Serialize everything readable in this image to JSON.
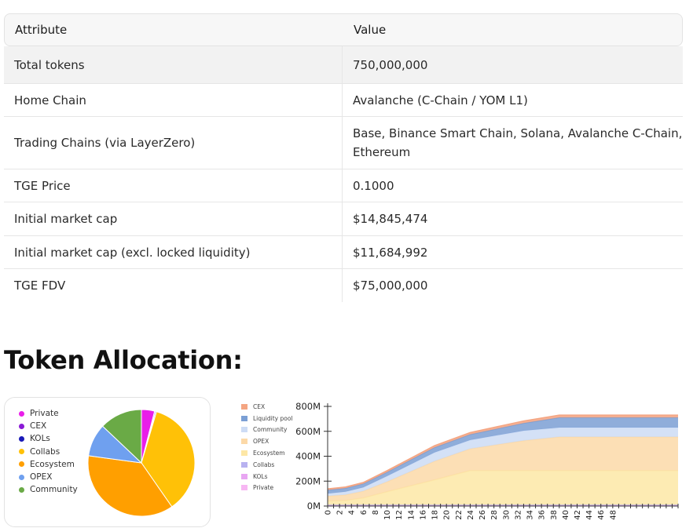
{
  "table": {
    "headers": [
      "Attribute",
      "Value"
    ],
    "rows": [
      {
        "attribute": "Total tokens",
        "value": "750,000,000"
      },
      {
        "attribute": "Home Chain",
        "value": "Avalanche (C-Chain / YOM L1)"
      },
      {
        "attribute": "Trading Chains (via LayerZero)",
        "value": "Base, Binance Smart Chain, Solana, Avalanche C-Chain, Ethereum"
      },
      {
        "attribute": "TGE Price",
        "value": "0.1000"
      },
      {
        "attribute": "Initial market cap",
        "value": "$14,845,474"
      },
      {
        "attribute": "Initial market cap (excl. locked liquidity)",
        "value": "$11,684,992"
      },
      {
        "attribute": "TGE FDV",
        "value": "$75,000,000"
      }
    ]
  },
  "section_title": "Token Allocation:",
  "chart_data": [
    {
      "type": "pie",
      "legend_position": "left",
      "labels": [
        "Private",
        "CEX",
        "KOLs",
        "Collabs",
        "Ecosystem",
        "OPEX",
        "Community"
      ],
      "colors": [
        "#e91ee9",
        "#8a1ad6",
        "#1a1ab8",
        "#ffc107",
        "#ff9f00",
        "#6fa0ef",
        "#6aaa46"
      ],
      "values": [
        4,
        0.3,
        0.3,
        36,
        37,
        10,
        13
      ]
    },
    {
      "type": "area",
      "stacked": true,
      "legend_position": "left",
      "y_tick_labels": [
        "0M",
        "200M",
        "400M",
        "600M",
        "800M"
      ],
      "ylim": [
        0,
        800
      ],
      "xlim": [
        0,
        59
      ],
      "x_tick_labels": [
        "0",
        "2",
        "4",
        "6",
        "8",
        "10",
        "12",
        "14",
        "16",
        "18",
        "20",
        "22",
        "24",
        "26",
        "28",
        "30",
        "32",
        "34",
        "36",
        "38",
        "40",
        "42",
        "44",
        "46",
        "48"
      ],
      "legend": [
        "CEX",
        "Liquidity pool",
        "Community",
        "OPEX",
        "Ecosystem",
        "Collabs",
        "KOLs",
        "Private"
      ],
      "legend_colors": [
        "#f4a582",
        "#7b9fd4",
        "#cddcf5",
        "#fcd9a8",
        "#fde7a6",
        "#b8b2f0",
        "#e8a6f2",
        "#f7b7f3"
      ],
      "x": [
        0,
        3,
        6,
        10,
        18,
        24,
        33,
        39,
        59
      ],
      "series": [
        {
          "name": "Private",
          "values": [
            3,
            3,
            3,
            3,
            3,
            3,
            3,
            3,
            3
          ],
          "color": "#f7b7f3"
        },
        {
          "name": "KOLs",
          "values": [
            3,
            3,
            3,
            3,
            3,
            3,
            3,
            3,
            3
          ],
          "color": "#e8a6f2"
        },
        {
          "name": "Collabs",
          "values": [
            4,
            4,
            4,
            4,
            4,
            4,
            4,
            4,
            4
          ],
          "color": "#b8b2f0"
        },
        {
          "name": "Ecosystem",
          "values": [
            30,
            35,
            55,
            105,
            200,
            275,
            275,
            275,
            275
          ],
          "color": "#fde7a6"
        },
        {
          "name": "OPEX",
          "values": [
            40,
            45,
            55,
            80,
            150,
            175,
            240,
            270,
            270
          ],
          "color": "#fcd9a8"
        },
        {
          "name": "Community",
          "values": [
            20,
            25,
            30,
            45,
            70,
            70,
            80,
            75,
            75
          ],
          "color": "#cddcf5"
        },
        {
          "name": "Liquidity pool",
          "values": [
            28,
            28,
            29,
            32,
            40,
            45,
            60,
            80,
            80
          ],
          "color": "#7b9fd4"
        },
        {
          "name": "CEX",
          "values": [
            10,
            10,
            10,
            12,
            15,
            15,
            18,
            20,
            20
          ],
          "color": "#f4a582"
        }
      ]
    }
  ]
}
